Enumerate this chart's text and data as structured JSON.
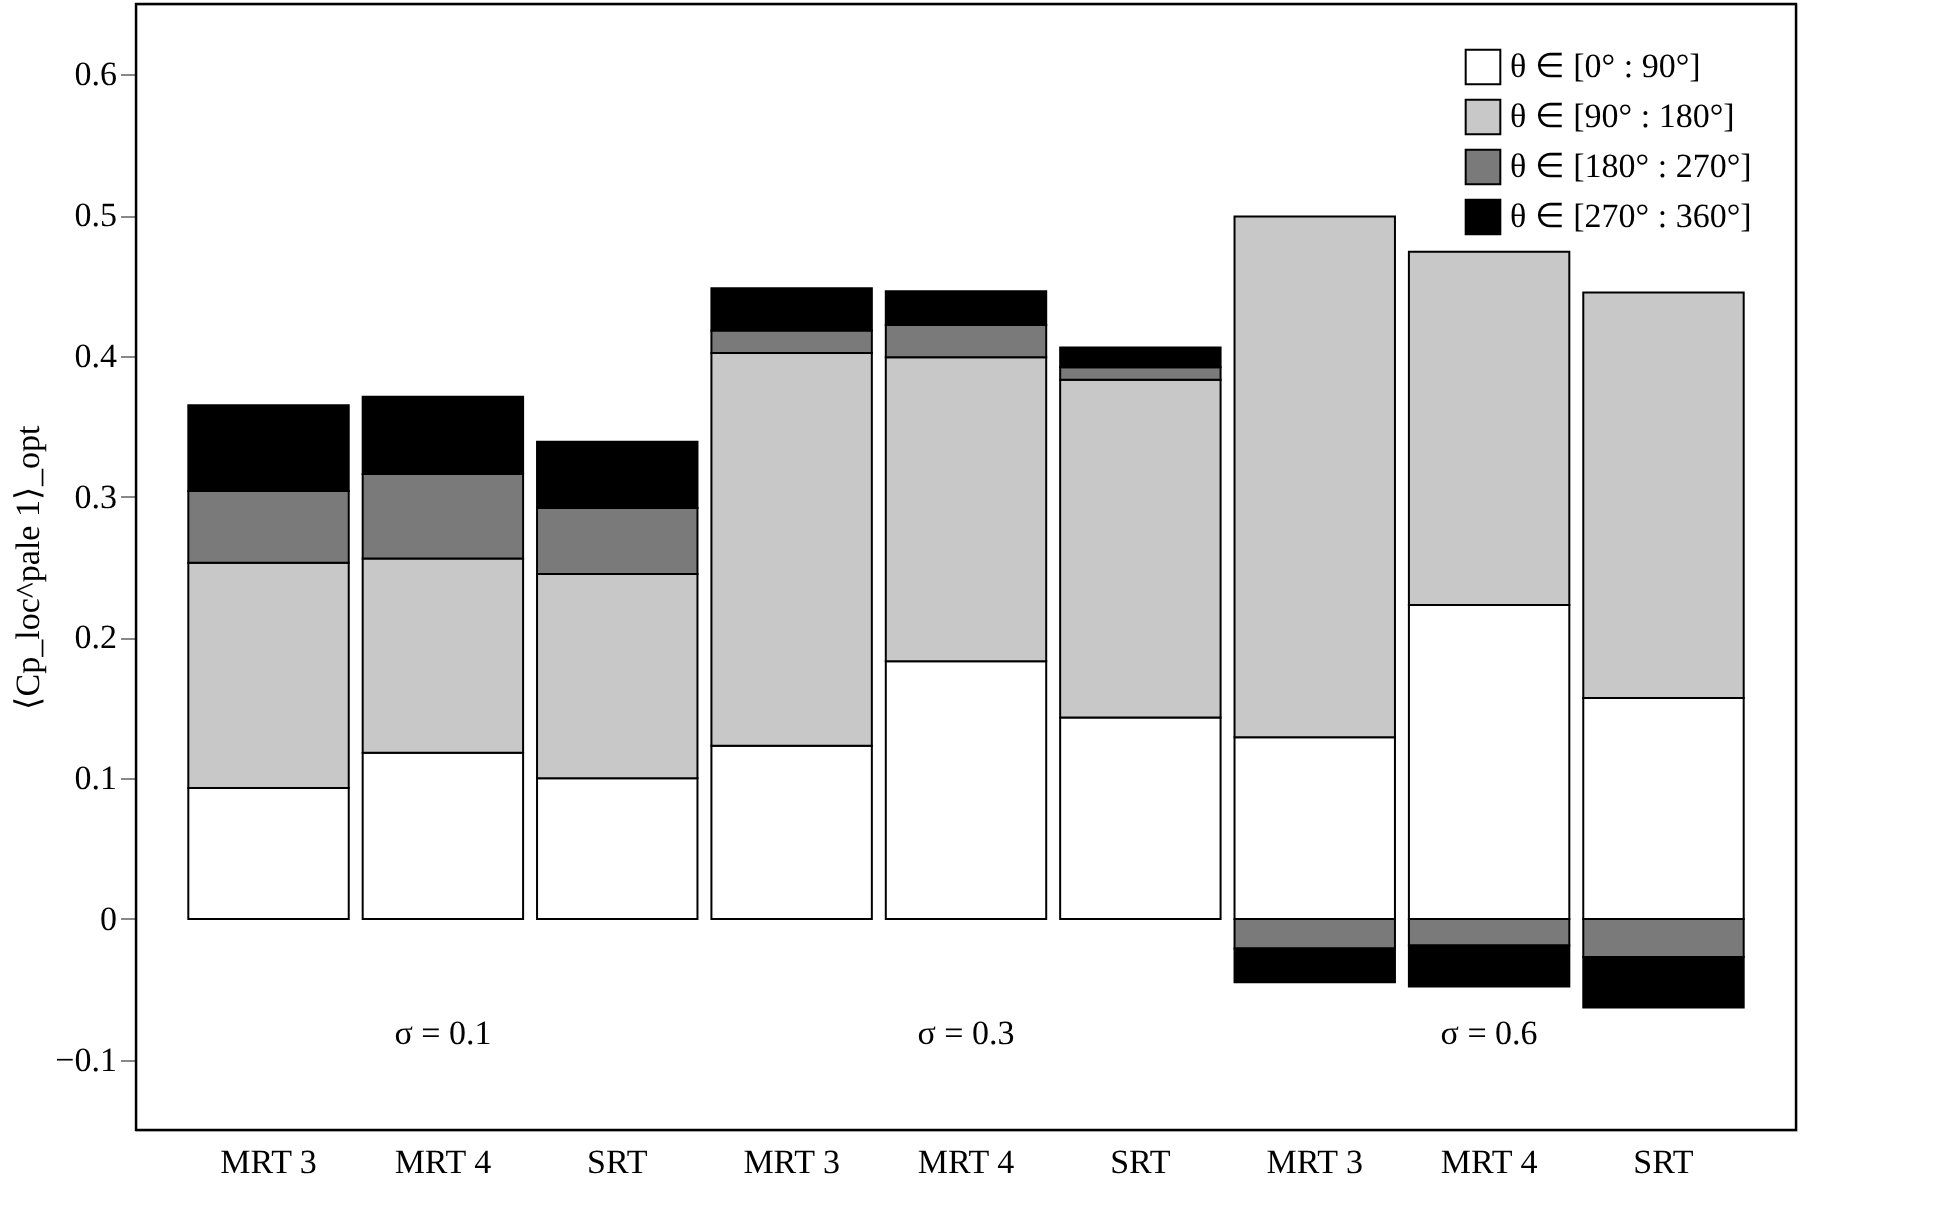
{
  "chart_data": {
    "type": "bar",
    "stacked": true,
    "ylabel": "⟨Cp_loc^pale 1⟩_opt",
    "categories": [
      "MRT 3",
      "MRT 4",
      "SRT",
      "MRT 3",
      "MRT 4",
      "SRT",
      "MRT 3",
      "MRT 4",
      "SRT"
    ],
    "series": [
      {
        "name": "θ ∈ [0° : 90°]",
        "color": "#ffffff",
        "values": [
          0.093,
          0.118,
          0.1,
          0.123,
          0.183,
          0.143,
          0.129,
          0.223,
          0.157
        ]
      },
      {
        "name": "θ ∈ [90° : 180°]",
        "color": "#c8c8c8",
        "values": [
          0.16,
          0.138,
          0.145,
          0.279,
          0.216,
          0.24,
          0.37,
          0.251,
          0.288
        ]
      },
      {
        "name": "θ ∈ [180° : 270°]",
        "color": "#7a7a7a",
        "values": [
          0.051,
          0.06,
          0.047,
          0.016,
          0.023,
          0.009,
          -0.021,
          -0.019,
          -0.027
        ]
      },
      {
        "name": "θ ∈ [270° : 360°]",
        "color": "#000000",
        "values": [
          0.061,
          0.055,
          0.047,
          0.03,
          0.024,
          0.014,
          -0.024,
          -0.029,
          -0.036
        ]
      }
    ],
    "ylim": [
      -0.15,
      0.65
    ],
    "yticks": [
      {
        "value": -0.1,
        "label": "−0.1"
      },
      0,
      0.1,
      0.2,
      0.3,
      0.4,
      0.5,
      0.6
    ],
    "grid": false,
    "legend": "top right",
    "annotations": [
      "σ = 0.1",
      "σ = 0.3",
      "σ = 0.6"
    ]
  }
}
